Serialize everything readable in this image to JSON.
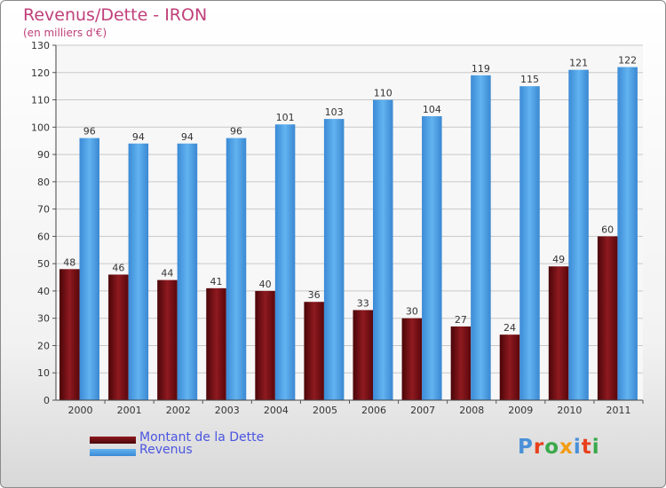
{
  "header": {
    "title": "Revenus/Dette - IRON",
    "subtitle": "(en milliers d'€)"
  },
  "legend": {
    "items": [
      {
        "label": "Montant de la Dette",
        "color": "#6e0b10"
      },
      {
        "label": "Revenus",
        "color": "#4a9ee0"
      }
    ]
  },
  "logo": {
    "text": "Proxiti",
    "letter_colors": [
      "#4a90d9",
      "#e8401c",
      "#3aa84a",
      "#f39c12",
      "#4a90d9",
      "#e8401c",
      "#3aa84a"
    ]
  },
  "chart_data": {
    "type": "bar",
    "title": "Revenus/Dette - IRON",
    "subtitle": "(en milliers d'€)",
    "categories": [
      "2000",
      "2001",
      "2002",
      "2003",
      "2004",
      "2005",
      "2006",
      "2007",
      "2008",
      "2009",
      "2010",
      "2011"
    ],
    "series": [
      {
        "name": "Montant de la Dette",
        "values": [
          48,
          46,
          44,
          41,
          40,
          36,
          33,
          30,
          27,
          24,
          49,
          60
        ],
        "color": "#6e0b10"
      },
      {
        "name": "Revenus",
        "values": [
          96,
          94,
          94,
          96,
          101,
          103,
          110,
          104,
          119,
          115,
          121,
          122
        ],
        "color": "#4a9ee0"
      }
    ],
    "ylim": [
      0,
      130
    ],
    "yticks": [
      0,
      10,
      20,
      30,
      40,
      50,
      60,
      70,
      80,
      90,
      100,
      110,
      120,
      130
    ],
    "grid": true,
    "legend_position": "bottom-left"
  }
}
